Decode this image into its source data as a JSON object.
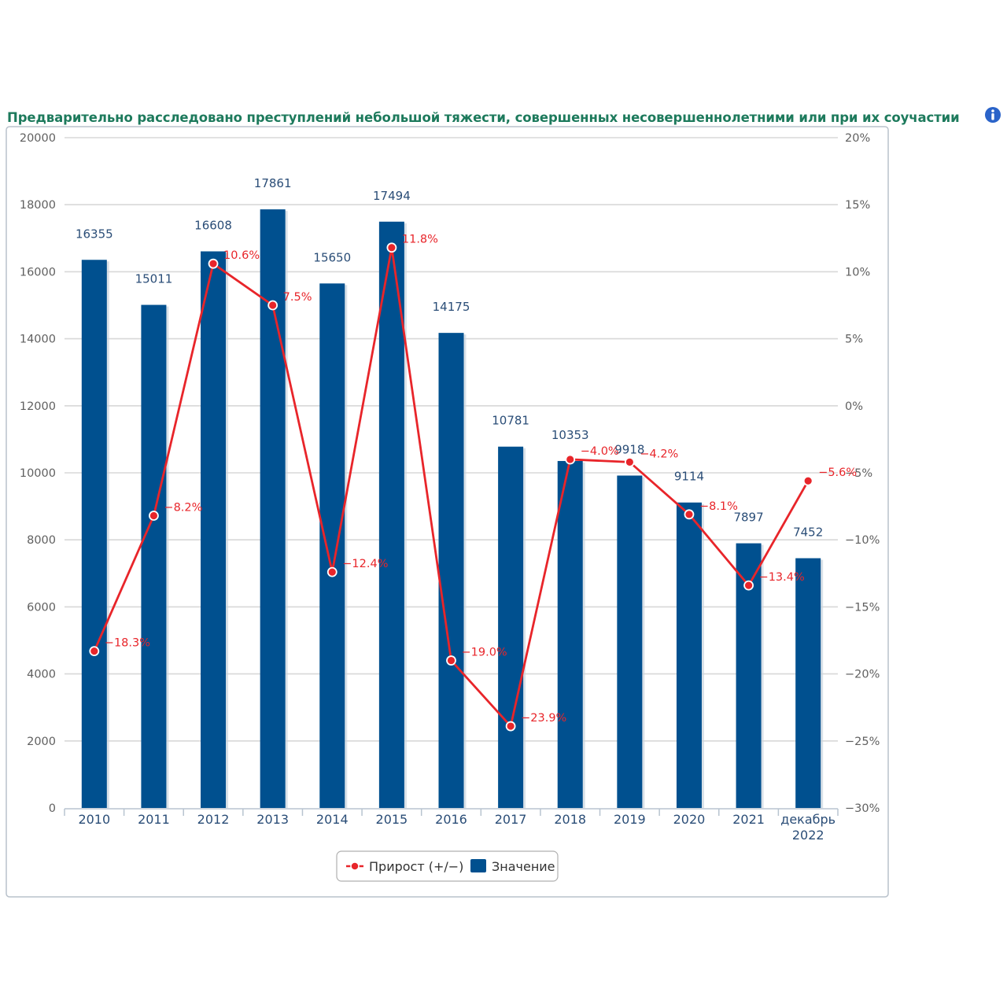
{
  "chart_data": {
    "type": "bar",
    "title": "Предварительно расследовано преступлений небольшой тяжести, совершенных несовершеннолетними или при их соучастии",
    "categories": [
      "2010",
      "2011",
      "2012",
      "2013",
      "2014",
      "2015",
      "2016",
      "2017",
      "2018",
      "2019",
      "2020",
      "2021",
      "декабрь 2022"
    ],
    "series": [
      {
        "name": "Значение",
        "type": "bar",
        "color": "#00508f",
        "values": [
          16355,
          15011,
          16608,
          17861,
          15650,
          17494,
          14175,
          10781,
          10353,
          9918,
          9114,
          7897,
          7452
        ]
      },
      {
        "name": "Прирост (+/−)",
        "type": "line",
        "color": "#e8252a",
        "values": [
          -18.3,
          -8.2,
          10.6,
          7.5,
          -12.4,
          11.8,
          -19.0,
          -23.9,
          -4.0,
          -4.2,
          -8.1,
          -13.4,
          -5.6
        ],
        "labels": [
          "−18.3%",
          "−8.2%",
          "10.6%",
          "7.5%",
          "−12.4%",
          "11.8%",
          "−19.0%",
          "−23.9%",
          "−4.0%",
          "−4.2%",
          "−8.1%",
          "−13.4%",
          "−5.6%"
        ]
      }
    ],
    "y_left": {
      "ylim": [
        0,
        20000
      ],
      "ticks": [
        0,
        2000,
        4000,
        6000,
        8000,
        10000,
        12000,
        14000,
        16000,
        18000,
        20000
      ],
      "tick_labels": [
        "0",
        "2000",
        "4000",
        "6000",
        "8000",
        "10000",
        "12000",
        "14000",
        "16000",
        "18000",
        "20000"
      ]
    },
    "y_right": {
      "ylim": [
        -30,
        20
      ],
      "ticks": [
        -30,
        -25,
        -20,
        -15,
        -10,
        -5,
        0,
        5,
        10,
        15,
        20
      ],
      "tick_labels": [
        "−30%",
        "−25%",
        "−20%",
        "−15%",
        "−10%",
        "−5%",
        "0%",
        "5%",
        "10%",
        "15%",
        "20%"
      ]
    },
    "grid": true,
    "legend": {
      "position": "bottom-center",
      "items": [
        "Прирост (+/−)",
        "Значение"
      ]
    }
  },
  "info_icon": "info-icon"
}
